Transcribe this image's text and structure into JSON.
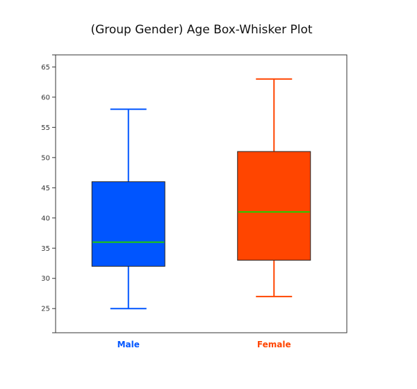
{
  "chart_data": {
    "type": "box",
    "title": "(Group Gender) Age Box-Whisker Plot",
    "xlabel": "",
    "ylabel": "",
    "ylim": [
      21,
      67
    ],
    "yticks": [
      25,
      30,
      35,
      40,
      45,
      50,
      55,
      60,
      65
    ],
    "grid": false,
    "categories": [
      "Male",
      "Female"
    ],
    "series": [
      {
        "category": "Male",
        "min": 25,
        "q1": 32,
        "median": 36,
        "q3": 46,
        "max": 58,
        "color": "#0055ff"
      },
      {
        "category": "Female",
        "min": 27,
        "q1": 33,
        "median": 41,
        "q3": 51,
        "max": 63,
        "color": "#ff4500"
      }
    ],
    "median_color": "#22cc00"
  }
}
